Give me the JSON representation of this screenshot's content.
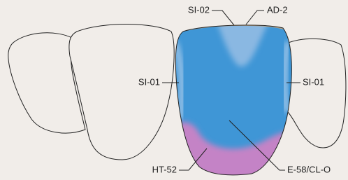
{
  "labels": [
    "SI-02",
    "AD-2",
    "SI-01",
    "SI-01",
    "HT-52",
    "E-58/CL-O"
  ]
}
